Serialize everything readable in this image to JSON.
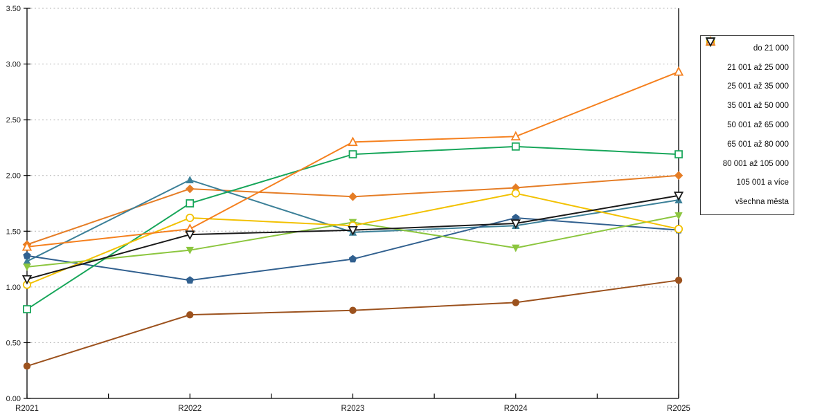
{
  "chart_data": {
    "type": "line",
    "title": "",
    "xlabel": "",
    "ylabel": "",
    "categories": [
      "R2021",
      "R2022",
      "R2023",
      "R2024",
      "R2025"
    ],
    "ylim": [
      0,
      3.5
    ],
    "y_tick_step": 0.5,
    "y_tick_labels": [
      "0.00",
      "0.50",
      "1.00",
      "1.50",
      "2.00",
      "2.50",
      "3.00",
      "3.50"
    ],
    "grid": "horizontal-dashed",
    "legend_position": "right",
    "series": [
      {
        "name": "do 21 000",
        "color": "#E57D26",
        "marker": "diamond",
        "values": [
          1.38,
          1.88,
          1.81,
          1.89,
          2.0
        ]
      },
      {
        "name": "21 001 až 25 000",
        "color": "#9C521E",
        "marker": "circle",
        "values": [
          0.29,
          0.75,
          0.79,
          0.86,
          1.06
        ]
      },
      {
        "name": "25 001 až 35 000",
        "color": "#3C8098",
        "marker": "triangle-up",
        "values": [
          1.23,
          1.96,
          1.49,
          1.55,
          1.78
        ]
      },
      {
        "name": "35 001 až 50 000",
        "color": "#31608F",
        "marker": "pentagon",
        "values": [
          1.28,
          1.06,
          1.25,
          1.62,
          1.51
        ]
      },
      {
        "name": "50 001 až 65 000",
        "color": "#8CC63F",
        "marker": "triangle-down",
        "values": [
          1.18,
          1.33,
          1.58,
          1.35,
          1.64
        ]
      },
      {
        "name": "65 001 až 80 000",
        "color": "#17A65A",
        "marker": "square-open",
        "values": [
          0.8,
          1.75,
          2.19,
          2.26,
          2.19
        ]
      },
      {
        "name": "80 001 až 105 000",
        "color": "#F2C100",
        "marker": "circle-open",
        "values": [
          1.02,
          1.62,
          1.55,
          1.84,
          1.52
        ]
      },
      {
        "name": "105 001 a více",
        "color": "#F5801E",
        "marker": "triangle-up-open",
        "values": [
          1.36,
          1.52,
          2.3,
          2.35,
          2.93
        ]
      },
      {
        "name": "všechna města",
        "color": "#1A1A1A",
        "marker": "triangle-down-open",
        "values": [
          1.07,
          1.47,
          1.51,
          1.57,
          1.82
        ]
      }
    ],
    "axis_color": "#000000",
    "gridline_color": "#b5b5b5"
  }
}
